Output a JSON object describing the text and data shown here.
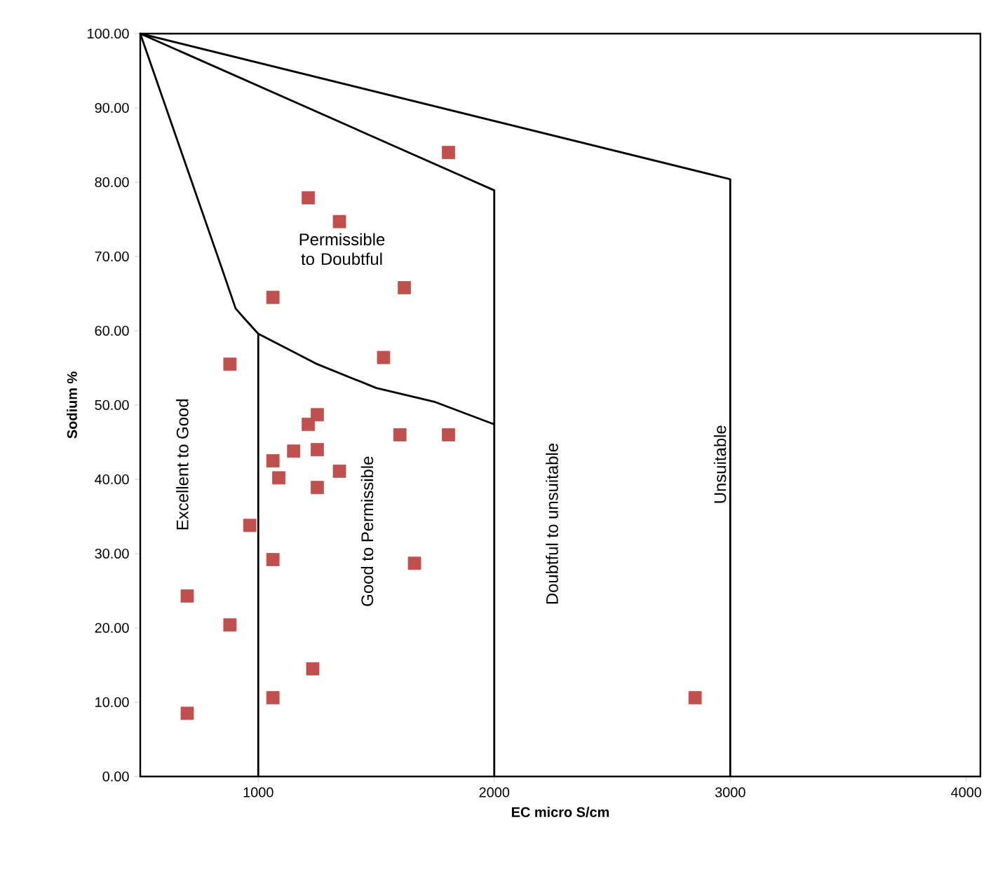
{
  "chart_data": {
    "type": "scatter",
    "xlabel": "EC micro S/cm",
    "ylabel": "Sodium %",
    "xlim": [
      500,
      4060
    ],
    "ylim": [
      0,
      100
    ],
    "xticks": [
      1000,
      2000,
      3000,
      4000
    ],
    "yticks": [
      {
        "value": 0,
        "label": "0.00"
      },
      {
        "value": 10,
        "label": "10.00"
      },
      {
        "value": 20,
        "label": "20.00"
      },
      {
        "value": 30,
        "label": "30.00"
      },
      {
        "value": 40,
        "label": "40.00"
      },
      {
        "value": 50,
        "label": "50.00"
      },
      {
        "value": 60,
        "label": "60.00"
      },
      {
        "value": 70,
        "label": "70.00"
      },
      {
        "value": 80,
        "label": "80.00"
      },
      {
        "value": 90,
        "label": "90.00"
      },
      {
        "value": 100,
        "label": "100.00"
      }
    ],
    "grid": false,
    "series": [
      {
        "color": "#c0504d",
        "marker": "square",
        "x": [
          1806,
          1212,
          1344,
          1619,
          1062,
          1531,
          880,
          1250,
          1212,
          1600,
          1806,
          1150,
          1250,
          1062,
          1087,
          1344,
          1250,
          964,
          1062,
          1662,
          699,
          880,
          1231,
          1062,
          699,
          2851
        ],
        "values": [
          84.0,
          77.9,
          74.7,
          65.8,
          64.5,
          56.4,
          55.5,
          48.7,
          47.4,
          46.0,
          46.0,
          43.8,
          44.0,
          42.5,
          40.2,
          41.1,
          38.9,
          33.8,
          29.2,
          28.7,
          24.3,
          20.4,
          14.5,
          10.6,
          8.5,
          10.6
        ]
      },
      {
        "type": "line",
        "color": "#000000",
        "marker": "none",
        "x": [
          1000,
          1000,
          940,
          904,
          849,
          500,
          2000,
          2000,
          null,
          500,
          3000,
          3000,
          null,
          1000,
          1250,
          1500,
          1750,
          2000
        ],
        "values": [
          0,
          59.6,
          61.7,
          63.0,
          68.1,
          100,
          78.9,
          0,
          null,
          100,
          80.4,
          0,
          null,
          59.6,
          55.5,
          52.3,
          50.4,
          47.4
        ]
      }
    ],
    "annotations": [
      "Permissible to Doubtful",
      "Excellent to Good",
      "Good to Permissible",
      "Doubtful to unsuitable",
      "Unsuitable"
    ]
  }
}
